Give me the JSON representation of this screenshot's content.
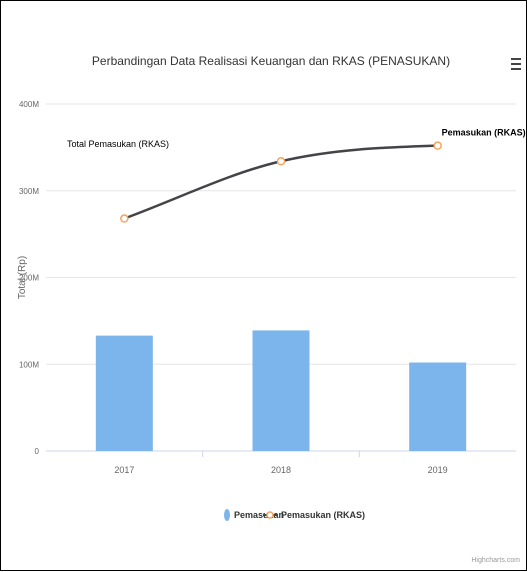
{
  "chart_data": {
    "type": "bar+line",
    "title": "Perbandingan Data Realisasi Keuangan dan RKAS (PENASUKAN)",
    "ylabel": "Total (Rp)",
    "xlabel": "",
    "categories": [
      "2017",
      "2018",
      "2019"
    ],
    "ylim": [
      0,
      400
    ],
    "yticks": [
      {
        "value": 0,
        "label": "0"
      },
      {
        "value": 100,
        "label": "100M"
      },
      {
        "value": 200,
        "label": "200M"
      },
      {
        "value": 300,
        "label": "300M"
      },
      {
        "value": 400,
        "label": "400M"
      }
    ],
    "series": [
      {
        "name": "Pemasukan",
        "kind": "bar",
        "color": "#7cb5ec",
        "values": [
          133,
          139,
          102
        ]
      },
      {
        "name": "Pemasukan (RKAS)",
        "kind": "line",
        "color": "#434348",
        "marker_color": "#f7a35c",
        "values": [
          268,
          334,
          352
        ]
      }
    ],
    "annotations": [
      {
        "text": "Total Pemasukan (RKAS)",
        "anchor": "left-top"
      },
      {
        "text": "Pemasukan (RKAS)",
        "anchor": "last-point"
      }
    ],
    "legend_position": "bottom-center",
    "grid": true
  },
  "menu_icon": "hamburger-menu-icon",
  "credits": "Highcharts.com"
}
